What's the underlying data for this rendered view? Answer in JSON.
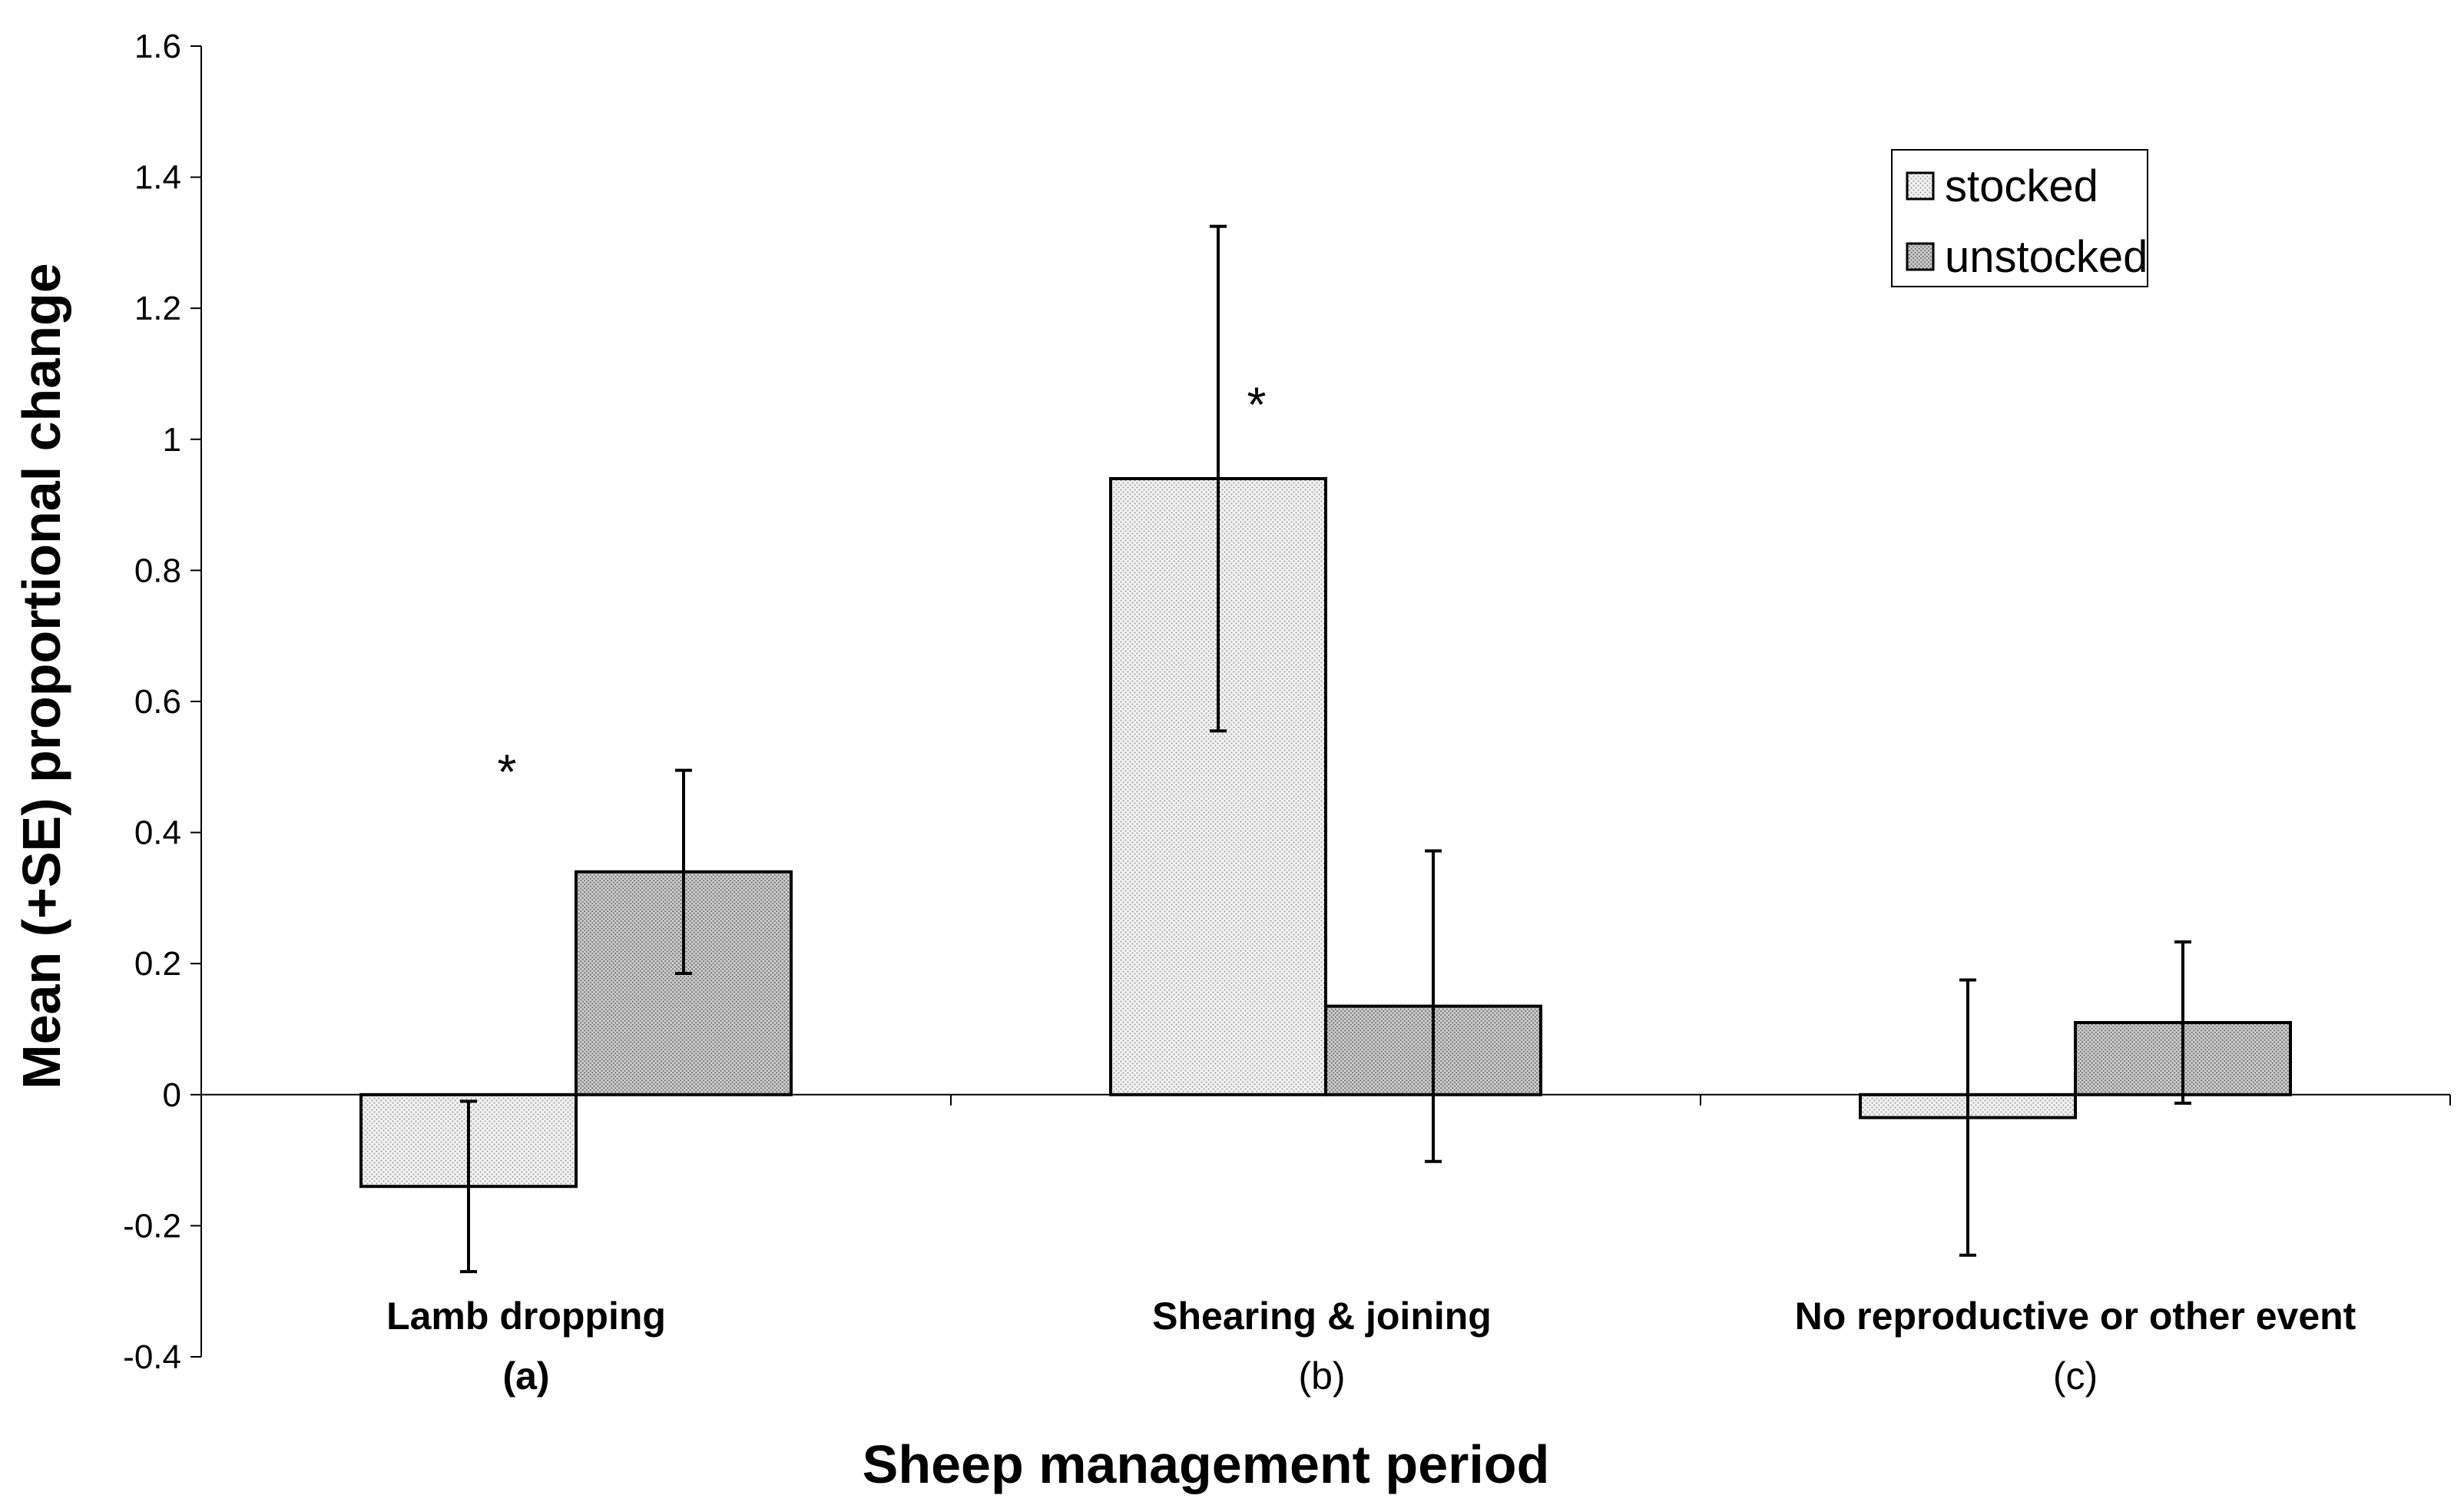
{
  "chart_data": {
    "type": "bar",
    "title": "",
    "xlabel": "Sheep management period",
    "ylabel": "Mean (+SE) proportional change",
    "ylim": [
      -0.4,
      1.6
    ],
    "yticks": [
      -0.4,
      -0.2,
      0,
      0.2,
      0.4,
      0.6,
      0.8,
      1,
      1.2,
      1.4,
      1.6
    ],
    "ytick_labels": [
      "-0.4",
      "-0.2",
      "0",
      "0.2",
      "0.4",
      "0.6",
      "0.8",
      "1",
      "1.2",
      "1.4",
      "1.6"
    ],
    "categories": [
      {
        "label": "Lamb dropping",
        "sub": "(a)"
      },
      {
        "label": "Shearing & joining",
        "sub": "(b)"
      },
      {
        "label": "No reproductive or other event",
        "sub": "(c)"
      }
    ],
    "series": [
      {
        "name": "stocked",
        "values": [
          -0.14,
          0.94,
          -0.035
        ],
        "errors": [
          0.13,
          0.385,
          0.21
        ],
        "color": "#ebebeb"
      },
      {
        "name": "unstocked",
        "values": [
          0.34,
          0.135,
          0.11
        ],
        "errors": [
          0.155,
          0.237,
          0.123
        ],
        "color": "#bdbdbd"
      }
    ],
    "annotations": [
      {
        "text": "*",
        "category": 0,
        "y": 0.5
      },
      {
        "text": "*",
        "category": 1,
        "y": 1.06
      }
    ],
    "grid": false,
    "legend": "top-right"
  }
}
